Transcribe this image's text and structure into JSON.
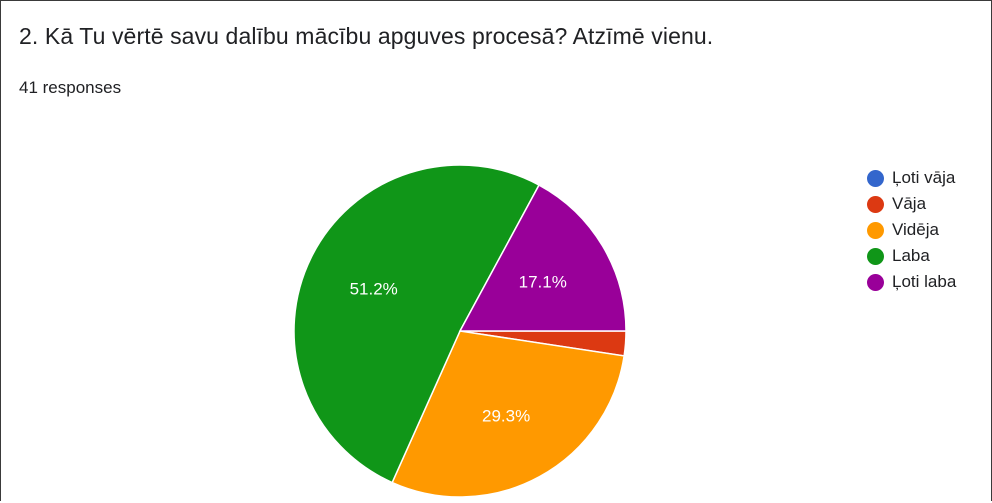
{
  "title": "2. Kā Tu vērtē savu dalību mācību apguves procesā?  Atzīmē vienu.",
  "responses": "41 responses",
  "chart_data": {
    "type": "pie",
    "total_responses": 41,
    "slices": [
      {
        "name": "Ļoti vāja",
        "value": 0,
        "label": "",
        "color": "#3366cc"
      },
      {
        "name": "Vāja",
        "value": 2.4,
        "label": "",
        "color": "#dc3912"
      },
      {
        "name": "Vidēja",
        "value": 29.3,
        "label": "29.3%",
        "color": "#ff9900"
      },
      {
        "name": "Laba",
        "value": 51.2,
        "label": "51.2%",
        "color": "#109618"
      },
      {
        "name": "Ļoti laba",
        "value": 17.1,
        "label": "17.1%",
        "color": "#990099"
      }
    ],
    "legend_position": "right"
  }
}
